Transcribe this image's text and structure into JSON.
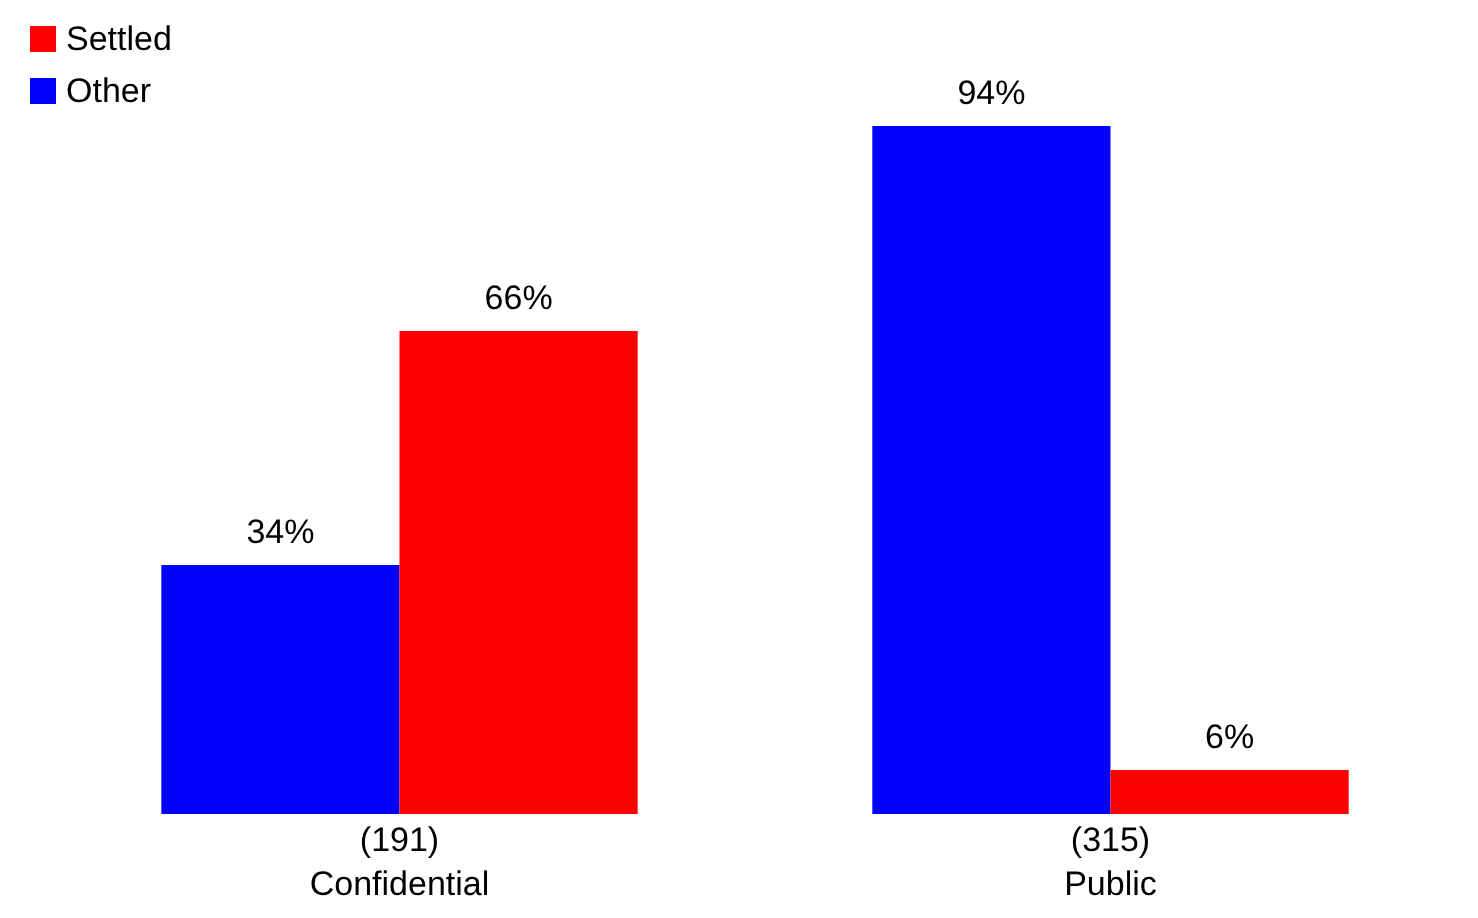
{
  "chart_data": {
    "type": "bar",
    "categories": [
      "(191)\nConfidential",
      "(315)\nPublic"
    ],
    "series": [
      {
        "name": "Other",
        "color": "#0000ff",
        "values": [
          34,
          94
        ],
        "value_labels": [
          "34%",
          "94%"
        ]
      },
      {
        "name": "Settled",
        "color": "#ff0000",
        "values": [
          66,
          6
        ],
        "value_labels": [
          "66%",
          "6%"
        ]
      }
    ],
    "legend": "top left",
    "grid": false
  }
}
